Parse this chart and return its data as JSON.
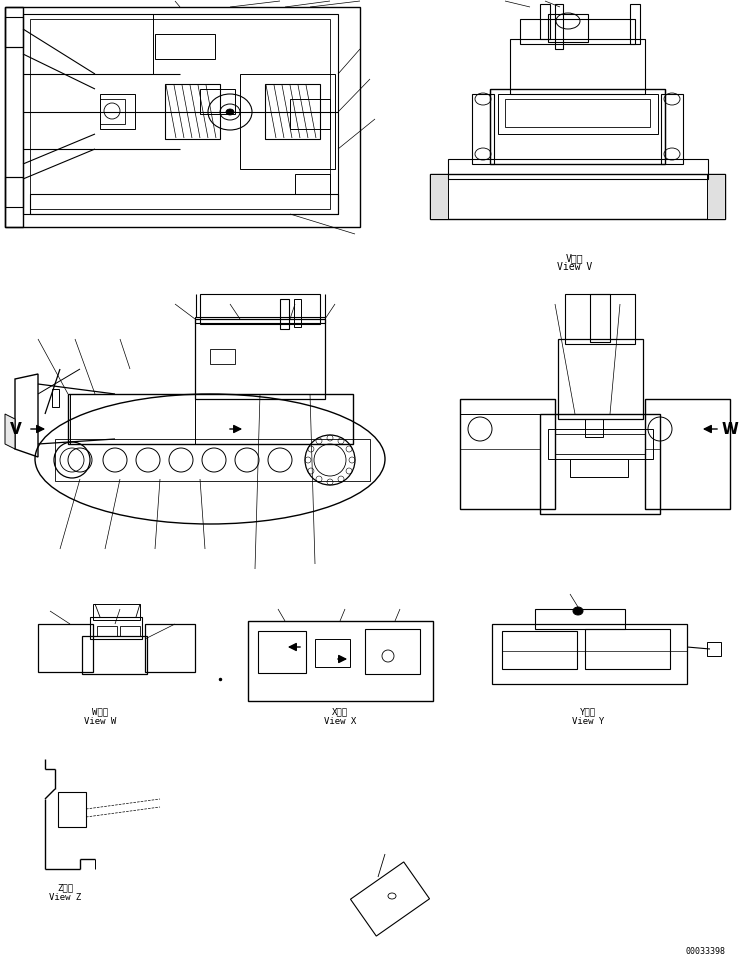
{
  "bg_color": "#ffffff",
  "line_color": "#000000",
  "fig_width": 7.39,
  "fig_height": 9.62,
  "dpi": 100,
  "labels": {
    "view_v_kanji": "V　視",
    "view_v": "View V",
    "view_w_kanji": "W　視",
    "view_w": "View W",
    "view_x_kanji": "X　視",
    "view_x": "View X",
    "view_y_kanji": "Y　視",
    "view_y": "View Y",
    "view_z_kanji": "Z　視",
    "view_z": "View Z",
    "part_number": "00033398",
    "arrow_v": "V",
    "arrow_w": "W"
  },
  "font_size_small": 6.5,
  "font_size_arrow_label": 11,
  "font_size_pn": 6
}
